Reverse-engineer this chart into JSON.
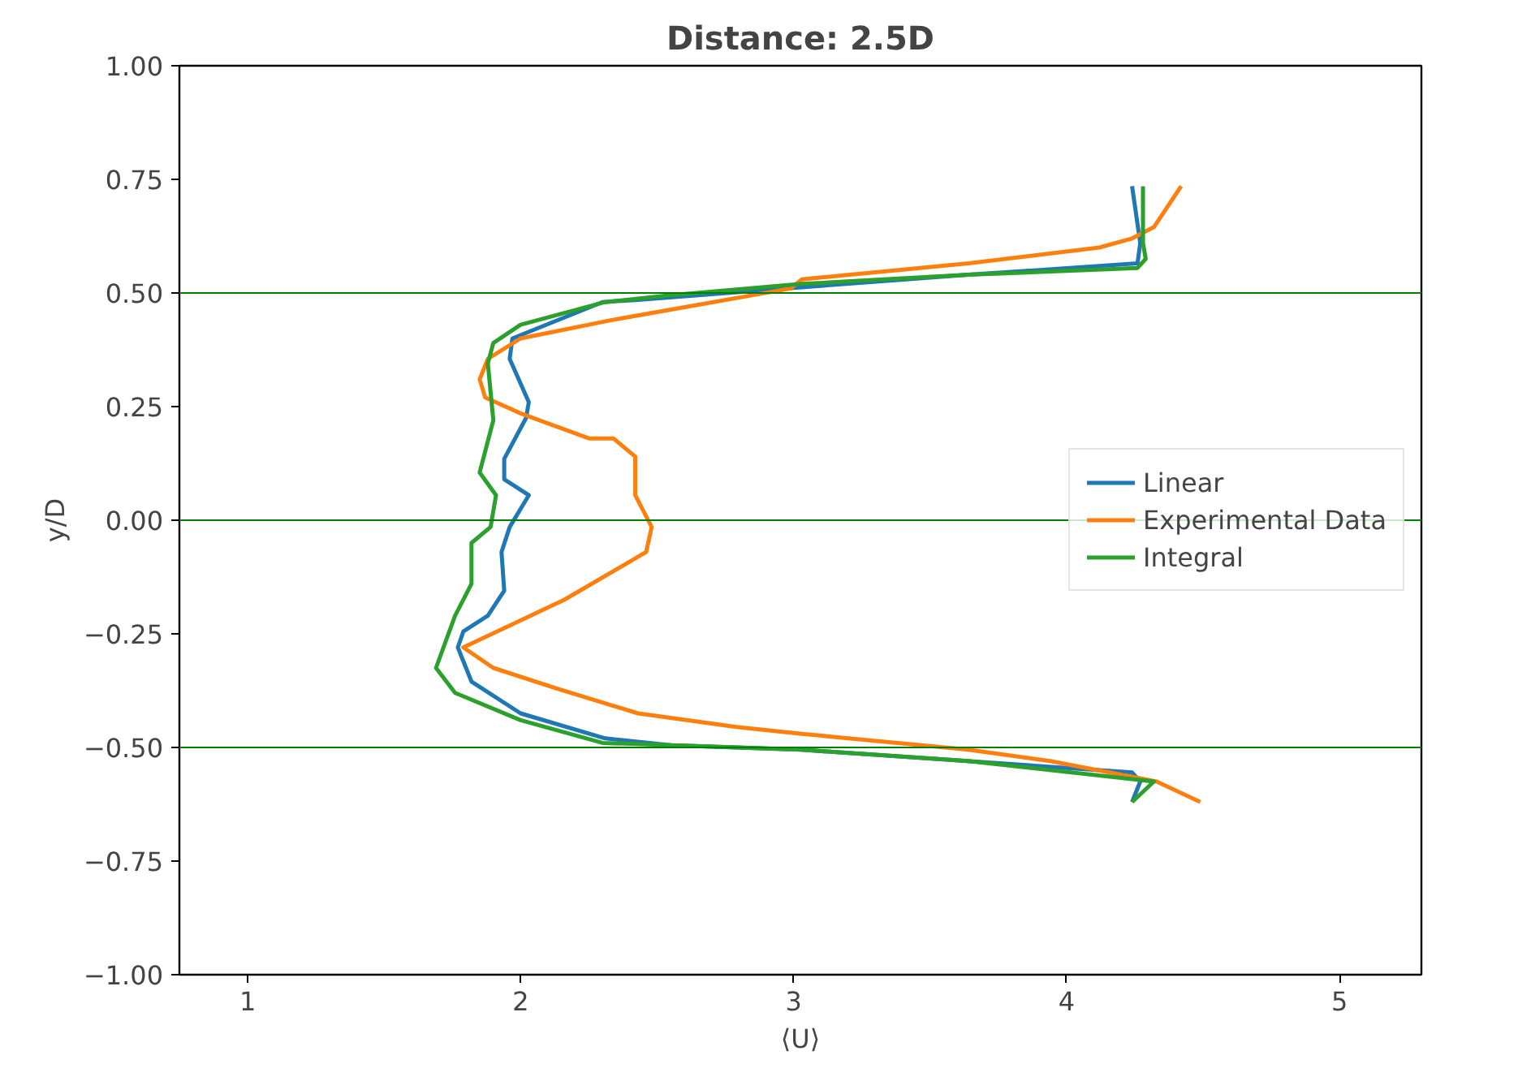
{
  "chart_data": {
    "type": "line",
    "title": "Distance: 2.5D",
    "xlabel": "⟨U⟩",
    "ylabel": "y/D",
    "xlim": [
      0.75,
      5.3
    ],
    "xticks": [
      1,
      2,
      3,
      4,
      5
    ],
    "ylim": [
      -1.0,
      1.0
    ],
    "yticks": [
      {
        "value": -1.0,
        "label": "−1.00"
      },
      {
        "value": -0.75,
        "label": "−0.75"
      },
      {
        "value": -0.5,
        "label": "−0.50"
      },
      {
        "value": -0.25,
        "label": "−0.25"
      },
      {
        "value": 0.0,
        "label": "0.00"
      },
      {
        "value": 0.25,
        "label": "0.25"
      },
      {
        "value": 0.5,
        "label": "0.50"
      },
      {
        "value": 0.75,
        "label": "0.75"
      },
      {
        "value": 1.0,
        "label": "1.00"
      }
    ],
    "grid": false,
    "legend": "right",
    "marker": "none",
    "line_style": "solid",
    "ref_lines": [
      {
        "axis": "y",
        "value": 0.5,
        "color": "#008000"
      },
      {
        "axis": "y",
        "value": 0.0,
        "color": "#008000"
      },
      {
        "axis": "y",
        "value": -0.5,
        "color": "#008000"
      }
    ],
    "series": [
      {
        "name": "Linear",
        "color": "#1f77b4",
        "x": [
          4.24,
          4.27,
          4.26,
          3.64,
          2.97,
          2.43,
          2.3,
          1.97,
          1.96,
          2.03,
          2.02,
          1.94,
          1.94,
          2.03,
          1.96,
          1.93,
          1.94,
          1.88,
          1.79,
          1.77,
          1.82,
          2.0,
          2.31,
          2.55,
          3.03,
          4.24,
          4.27,
          4.24
        ],
        "values": [
          0.735,
          0.61,
          0.565,
          0.54,
          0.51,
          0.485,
          0.48,
          0.4,
          0.355,
          0.26,
          0.225,
          0.135,
          0.09,
          0.055,
          -0.015,
          -0.07,
          -0.155,
          -0.21,
          -0.245,
          -0.28,
          -0.355,
          -0.425,
          -0.48,
          -0.495,
          -0.505,
          -0.555,
          -0.575,
          -0.62
        ]
      },
      {
        "name": "Experimental Data",
        "color": "#ff7f0e",
        "x": [
          4.42,
          4.32,
          4.24,
          4.12,
          3.64,
          3.03,
          2.99,
          2.33,
          2.0,
          1.88,
          1.85,
          1.87,
          2.0,
          2.25,
          2.34,
          2.42,
          2.42,
          2.48,
          2.46,
          2.16,
          1.79,
          1.9,
          2.13,
          2.43,
          2.79,
          3.03,
          3.64,
          3.94,
          4.33,
          4.49
        ],
        "values": [
          0.735,
          0.645,
          0.62,
          0.6,
          0.565,
          0.53,
          0.51,
          0.44,
          0.4,
          0.355,
          0.31,
          0.27,
          0.235,
          0.18,
          0.18,
          0.14,
          0.055,
          -0.015,
          -0.07,
          -0.175,
          -0.28,
          -0.325,
          -0.37,
          -0.425,
          -0.455,
          -0.47,
          -0.505,
          -0.53,
          -0.575,
          -0.62
        ]
      },
      {
        "name": "Integral",
        "color": "#2ca02c",
        "x": [
          4.28,
          4.28,
          4.29,
          4.26,
          3.64,
          3.03,
          2.55,
          2.31,
          2.0,
          1.9,
          1.88,
          1.9,
          1.85,
          1.91,
          1.89,
          1.82,
          1.82,
          1.76,
          1.69,
          1.76,
          2.0,
          2.3,
          3.03,
          3.64,
          4.32,
          4.24
        ],
        "values": [
          0.735,
          0.61,
          0.575,
          0.555,
          0.54,
          0.52,
          0.495,
          0.48,
          0.43,
          0.39,
          0.345,
          0.22,
          0.105,
          0.055,
          -0.015,
          -0.05,
          -0.14,
          -0.21,
          -0.325,
          -0.38,
          -0.44,
          -0.49,
          -0.505,
          -0.53,
          -0.575,
          -0.62
        ]
      }
    ]
  }
}
